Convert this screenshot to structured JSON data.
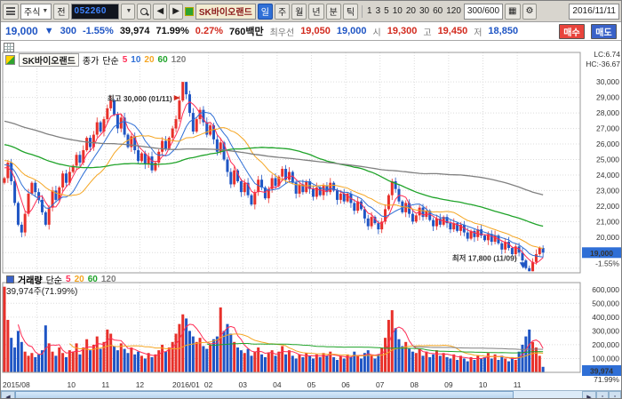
{
  "toolbar": {
    "asset_type": "주식",
    "prev_button": "전",
    "code": "052260",
    "stock_name": "SK바이오랜드",
    "periods": [
      "일",
      "주",
      "월",
      "년",
      "분",
      "틱"
    ],
    "active_period": "일",
    "intervals": [
      "1",
      "3",
      "5",
      "10",
      "20",
      "30",
      "60",
      "120"
    ],
    "range": "300/600",
    "date": "2016/11/11",
    "icons": [
      "window-layout-icon",
      "search-icon",
      "prev-stock-icon",
      "next-stock-icon",
      "chart-grid-icon",
      "gear-icon"
    ]
  },
  "infobar": {
    "price": "19,000",
    "change_arrow": "▼",
    "change": "300",
    "change_pct": "-1.55%",
    "volume": "39,974",
    "volume_ratio": "71.99%",
    "turnover_pct": "0.27%",
    "value": "760백만",
    "best_label": "최우선",
    "best_ask": "19,050",
    "best_bid": "19,000",
    "open_label": "시",
    "open": "19,300",
    "high_label": "고",
    "high": "19,450",
    "low_label": "저",
    "low": "18,850",
    "buy": "매수",
    "sell": "매도"
  },
  "chart": {
    "title": "SK바이오랜드",
    "price_legend": {
      "label": "종가",
      "type": "단순",
      "periods": [
        "5",
        "10",
        "20",
        "60",
        "120"
      ]
    },
    "volume_legend": {
      "label": "거래량",
      "type": "단순",
      "periods": [
        "5",
        "20",
        "60",
        "120"
      ]
    },
    "volume_summary": "39,974주(71.99%)",
    "lc": "LC:6.74",
    "hc": "HC:-36.67",
    "price_badge": "19,000",
    "price_badge_sub": "-1.55%",
    "volume_badge": "39,974",
    "volume_badge_sub": "71.99%"
  },
  "scrollbar": {
    "left": "◀",
    "right": "▶"
  },
  "chart_data": {
    "type": "candlestick",
    "title": "SK바이오랜드 일봉",
    "months": [
      "2015/08",
      "",
      "10",
      "11",
      "12",
      "2016/01",
      "02",
      "03",
      "04",
      "05",
      "06",
      "07",
      "08",
      "09",
      "10",
      "11"
    ],
    "month_group_size": 10,
    "open_first": 23500,
    "closes": [
      23800,
      24800,
      23600,
      22200,
      20800,
      20300,
      21500,
      22800,
      23500,
      22900,
      22400,
      21600,
      20800,
      21900,
      23000,
      22400,
      23200,
      24100,
      23500,
      24200,
      24600,
      25300,
      24800,
      25600,
      26400,
      25800,
      26600,
      27400,
      26800,
      27600,
      28300,
      28800,
      27900,
      27000,
      27700,
      26600,
      25800,
      26500,
      25600,
      24900,
      25400,
      24700,
      25200,
      24300,
      24800,
      25500,
      26200,
      25700,
      26400,
      27000,
      27600,
      28800,
      30000,
      29200,
      28000,
      26800,
      27600,
      28200,
      27400,
      26600,
      27200,
      26300,
      25500,
      26100,
      25000,
      24200,
      23400,
      24300,
      23600,
      22900,
      23500,
      22700,
      22100,
      22900,
      23700,
      23200,
      22500,
      23100,
      23800,
      23300,
      23900,
      24400,
      23700,
      24200,
      23500,
      22800,
      23400,
      22900,
      23600,
      23100,
      22600,
      23200,
      22700,
      23300,
      22900,
      23500,
      23000,
      22400,
      22800,
      22300,
      22800,
      22200,
      21700,
      22300,
      21800,
      21200,
      20700,
      21300,
      20900,
      20500,
      21000,
      21800,
      22700,
      23600,
      23100,
      22300,
      21600,
      22200,
      21500,
      21000,
      21400,
      21900,
      21300,
      21700,
      21100,
      20700,
      21200,
      20800,
      21300,
      20900,
      20500,
      20900,
      20400,
      20800,
      20300,
      19900,
      20400,
      20000,
      20500,
      20100,
      19800,
      20200,
      19700,
      20100,
      19600,
      19200,
      19700,
      19300,
      18900,
      19400,
      19000,
      18500,
      18000,
      17800,
      18400,
      18900,
      19300,
      19000
    ],
    "volumes": [
      620000,
      380000,
      250000,
      180000,
      300000,
      220000,
      150000,
      120000,
      140000,
      110000,
      130000,
      160000,
      340000,
      210000,
      150000,
      120000,
      180000,
      140000,
      110000,
      160000,
      150000,
      210000,
      130000,
      180000,
      240000,
      160000,
      200000,
      260000,
      170000,
      220000,
      310000,
      280000,
      190000,
      160000,
      210000,
      170000,
      140000,
      180000,
      130000,
      150000,
      120000,
      100000,
      140000,
      110000,
      130000,
      160000,
      200000,
      150000,
      180000,
      220000,
      280000,
      350000,
      420000,
      390000,
      300000,
      260000,
      220000,
      250000,
      190000,
      170000,
      200000,
      240000,
      260000,
      470000,
      300000,
      350000,
      280000,
      220000,
      180000,
      160000,
      140000,
      170000,
      120000,
      150000,
      180000,
      130000,
      110000,
      140000,
      160000,
      120000,
      150000,
      190000,
      130000,
      160000,
      120000,
      100000,
      130000,
      110000,
      140000,
      120000,
      100000,
      130000,
      110000,
      140000,
      120000,
      150000,
      110000,
      90000,
      120000,
      100000,
      130000,
      110000,
      150000,
      120000,
      100000,
      140000,
      160000,
      120000,
      100000,
      130000,
      180000,
      250000,
      380000,
      450000,
      320000,
      240000,
      190000,
      220000,
      170000,
      150000,
      140000,
      170000,
      120000,
      150000,
      110000,
      130000,
      160000,
      120000,
      140000,
      110000,
      100000,
      130000,
      90000,
      120000,
      100000,
      80000,
      110000,
      90000,
      120000,
      100000,
      110000,
      140000,
      100000,
      130000,
      90000,
      120000,
      100000,
      80000,
      110000,
      90000,
      150000,
      200000,
      260000,
      310000,
      220000,
      180000,
      120000,
      39974
    ],
    "price_axis": {
      "min": 17700,
      "max": 31900,
      "tick_min": 18000,
      "tick_max": 30000,
      "tick_step": 1000,
      "clamp_high": 30000,
      "clamp_low": 17800,
      "current": 19000
    },
    "volume_axis": {
      "max": 650000,
      "tick_min": 100000,
      "tick_max": 600000,
      "tick_step": 100000,
      "current": 39974
    },
    "ma_periods": [
      5,
      10,
      20,
      60,
      120
    ],
    "ma_colors": [
      "#ff2d55",
      "#2f6fd6",
      "#f5a623",
      "#1fa329",
      "#808080"
    ],
    "vol_ma_periods": [
      5,
      20,
      60,
      120
    ],
    "vol_ma_colors": [
      "#ff2d55",
      "#f5a623",
      "#1fa329",
      "#808080"
    ],
    "colors": {
      "up": "#e8302a",
      "down": "#1f55c4",
      "grid": "#dcdcdc",
      "border": "#9a9a9a",
      "badge_bg": "#2f6fd6",
      "badge_text": "#ffffff"
    },
    "prehistory": {
      "start": 30500,
      "end": 24550,
      "count": 120
    },
    "annotations": {
      "high": {
        "text": "최고 30,000 (01/11)",
        "index": 52,
        "price": 30000,
        "color": "#d22a1e"
      },
      "low": {
        "text": "최저 17,800 (11/09)",
        "index": 153,
        "price": 17800,
        "color": "#1f55c4"
      }
    },
    "legend_position": "top-left",
    "grid": true
  }
}
